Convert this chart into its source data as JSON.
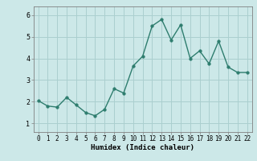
{
  "x": [
    0,
    1,
    2,
    3,
    4,
    5,
    6,
    7,
    8,
    9,
    10,
    11,
    12,
    13,
    14,
    15,
    16,
    17,
    18,
    19,
    20,
    21,
    22
  ],
  "y": [
    2.05,
    1.8,
    1.75,
    2.2,
    1.85,
    1.5,
    1.35,
    1.65,
    2.6,
    2.4,
    3.65,
    4.1,
    5.5,
    5.8,
    4.85,
    5.55,
    4.0,
    4.35,
    3.75,
    4.8,
    3.6,
    3.35,
    3.35
  ],
  "line_color": "#2e7d6e",
  "marker_color": "#2e7d6e",
  "bg_color": "#cce8e8",
  "grid_color": "#aacfcf",
  "xlabel": "Humidex (Indice chaleur)",
  "ylim": [
    0.6,
    6.4
  ],
  "xlim": [
    -0.5,
    22.5
  ],
  "yticks": [
    1,
    2,
    3,
    4,
    5,
    6
  ],
  "xticks": [
    0,
    1,
    2,
    3,
    4,
    5,
    6,
    7,
    8,
    9,
    10,
    11,
    12,
    13,
    14,
    15,
    16,
    17,
    18,
    19,
    20,
    21,
    22
  ],
  "xtick_labels": [
    "0",
    "1",
    "2",
    "3",
    "4",
    "5",
    "6",
    "7",
    "8",
    "9",
    "10",
    "11",
    "12",
    "13",
    "14",
    "15",
    "16",
    "17",
    "18",
    "19",
    "20",
    "21",
    "22"
  ],
  "linewidth": 1.0,
  "markersize": 2.5,
  "xlabel_fontsize": 6.5,
  "tick_fontsize": 5.5,
  "ytick_fontsize": 6.0
}
